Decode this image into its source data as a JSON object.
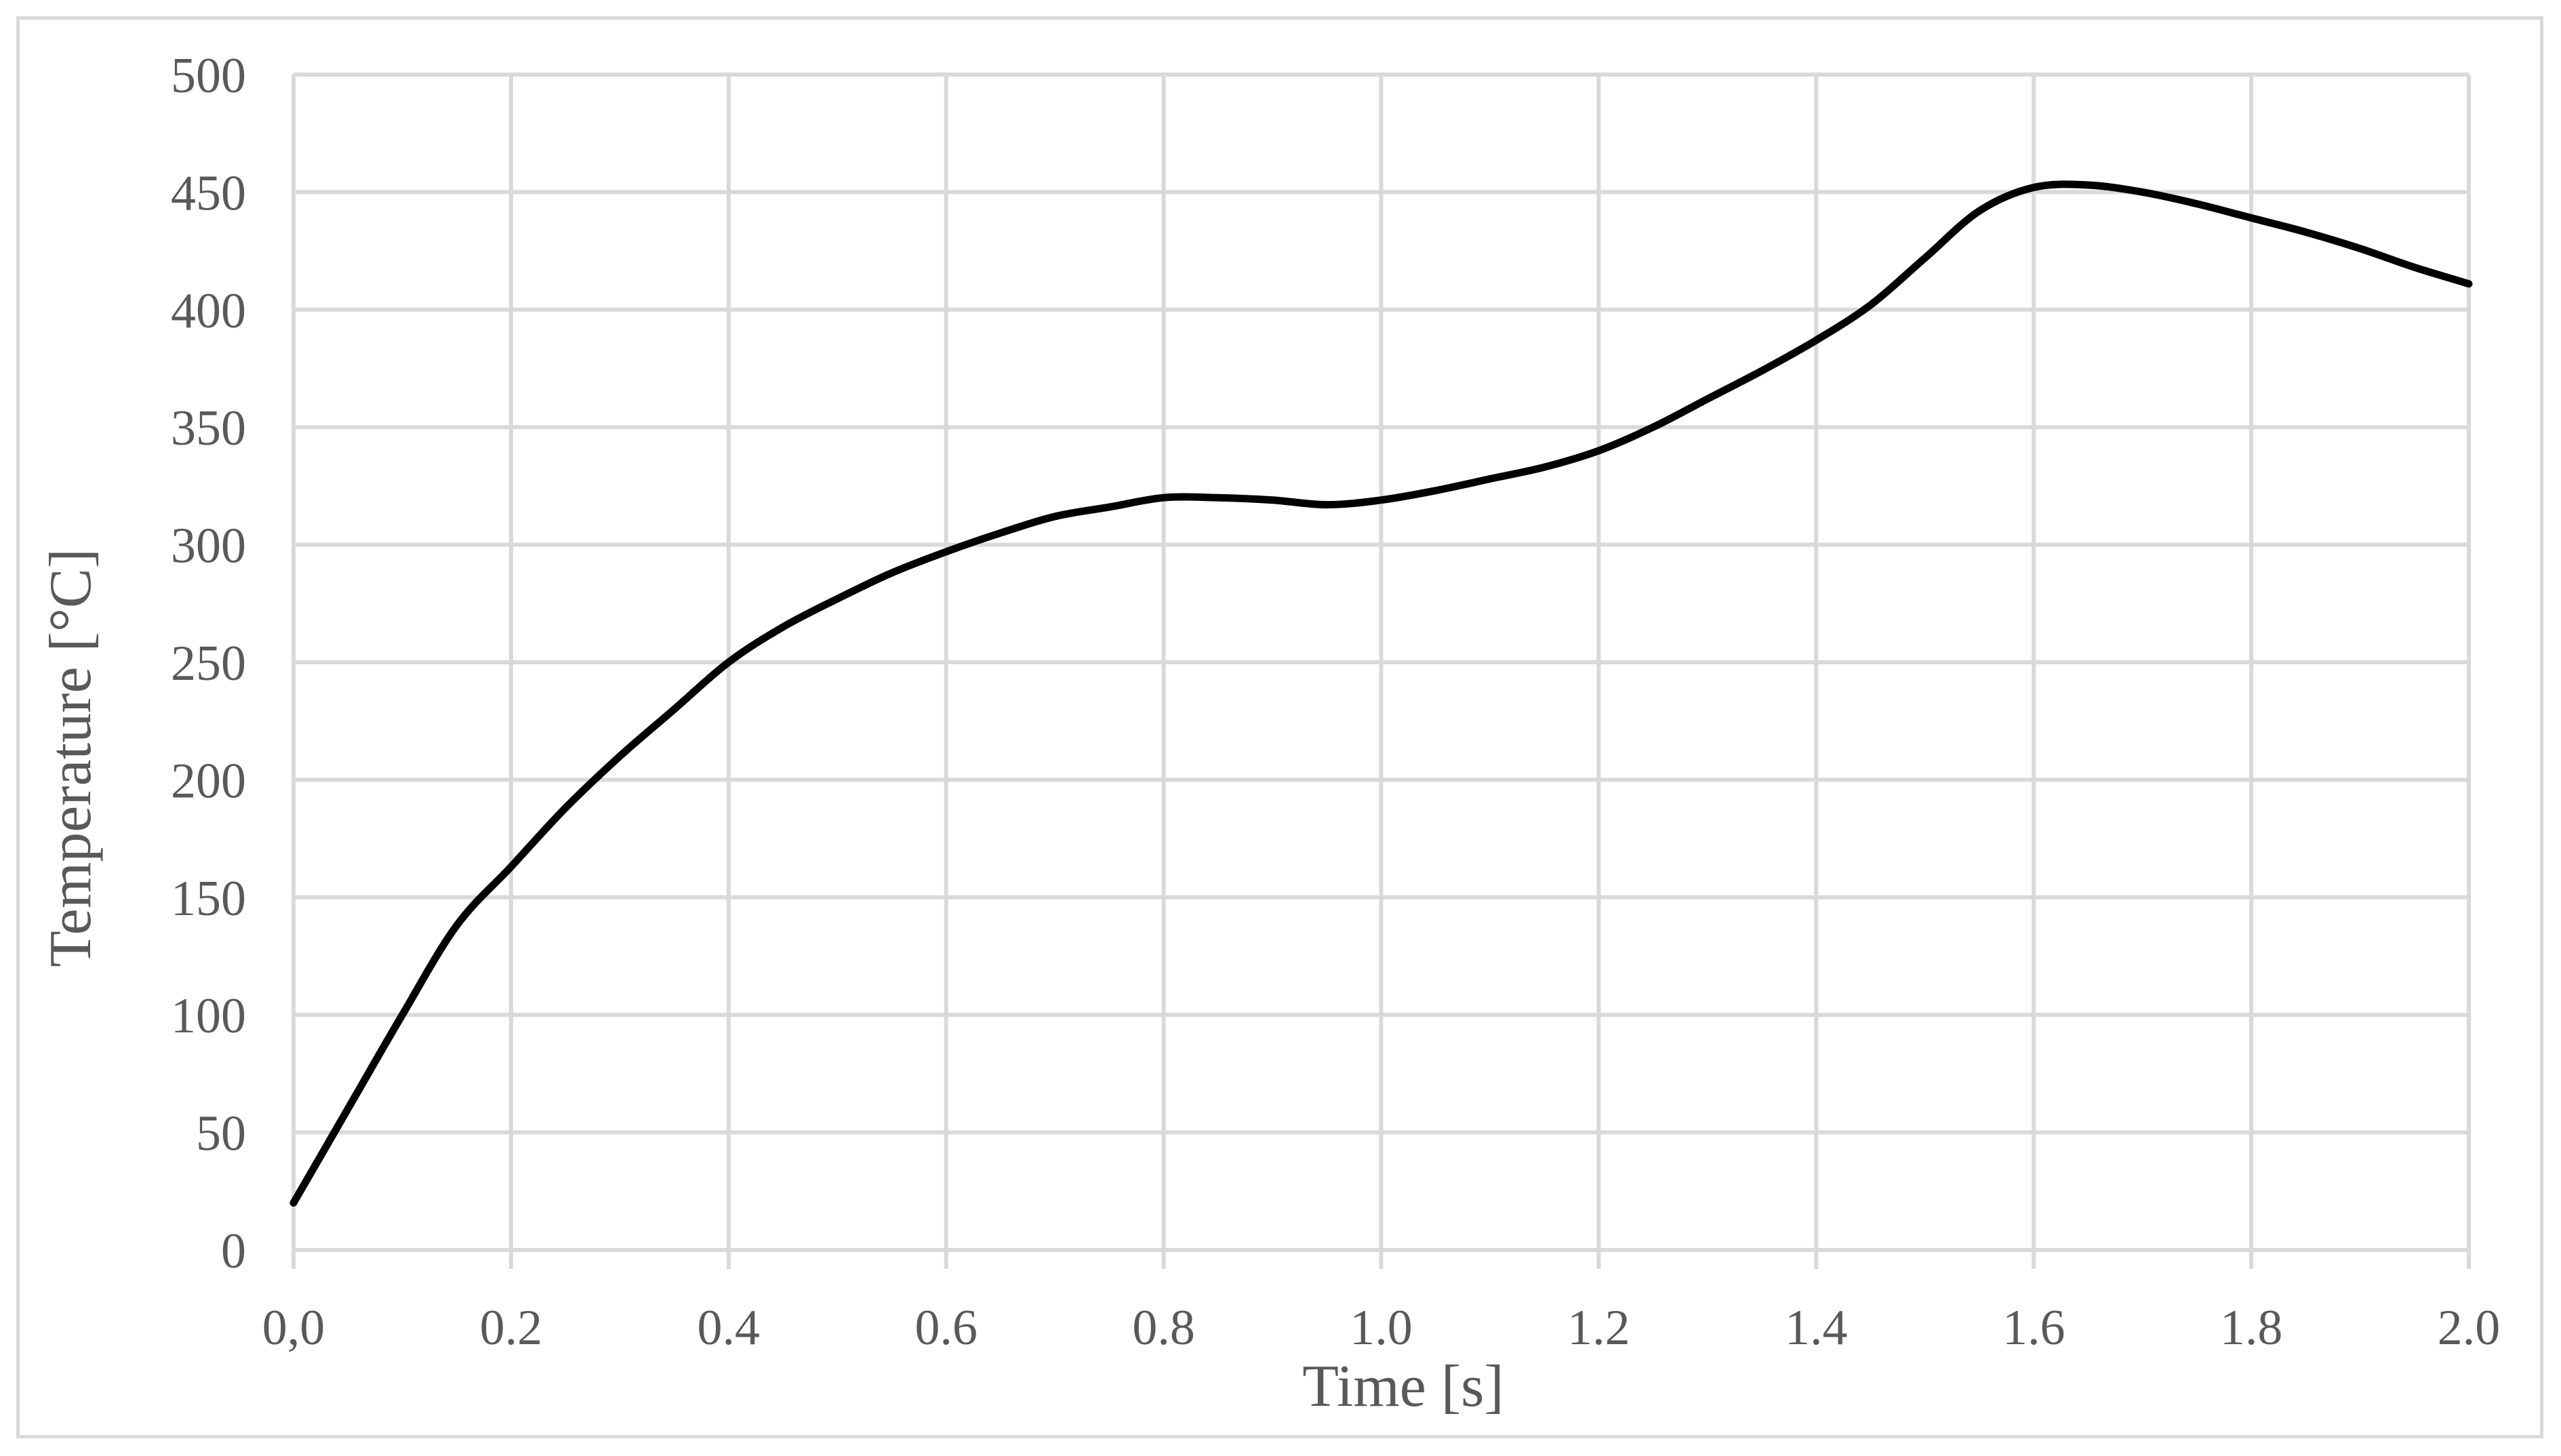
{
  "chart_data": {
    "type": "line",
    "title": "",
    "xlabel": "Time [s]",
    "ylabel": "Temperature [°C]",
    "xlim": [
      0,
      2.0
    ],
    "ylim": [
      0,
      500
    ],
    "xticks": [
      0,
      0.2,
      0.4,
      0.6,
      0.8,
      1.0,
      1.2,
      1.4,
      1.6,
      1.8,
      2.0
    ],
    "xtick_labels": [
      "0,0",
      "0.2",
      "0.4",
      "0.6",
      "0.8",
      "1.0",
      "1.2",
      "1.4",
      "1.6",
      "1.8",
      "2.0"
    ],
    "yticks": [
      0,
      50,
      100,
      150,
      200,
      250,
      300,
      350,
      400,
      450,
      500
    ],
    "ytick_labels": [
      "0",
      "50",
      "100",
      "150",
      "200",
      "250",
      "300",
      "350",
      "400",
      "450",
      "500"
    ],
    "grid": true,
    "legend": "none",
    "line_color": "#000000",
    "grid_color": "#d9d9d9",
    "text_color": "#595959",
    "series": [
      {
        "x": [
          0.0,
          0.05,
          0.1,
          0.15,
          0.2,
          0.25,
          0.3,
          0.35,
          0.4,
          0.45,
          0.5,
          0.55,
          0.6,
          0.65,
          0.7,
          0.75,
          0.8,
          0.85,
          0.9,
          0.95,
          1.0,
          1.05,
          1.1,
          1.15,
          1.2,
          1.25,
          1.3,
          1.35,
          1.4,
          1.45,
          1.5,
          1.55,
          1.6,
          1.65,
          1.7,
          1.75,
          1.8,
          1.85,
          1.9,
          1.95,
          2.0
        ],
        "values": [
          20,
          60,
          100,
          138,
          163,
          188,
          210,
          230,
          250,
          265,
          277,
          288,
          297,
          305,
          312,
          316,
          320,
          320,
          319,
          317,
          319,
          323,
          328,
          333,
          340,
          350,
          362,
          374,
          387,
          402,
          422,
          442,
          452,
          453,
          450,
          445,
          439,
          433,
          426,
          418,
          411
        ]
      }
    ]
  }
}
